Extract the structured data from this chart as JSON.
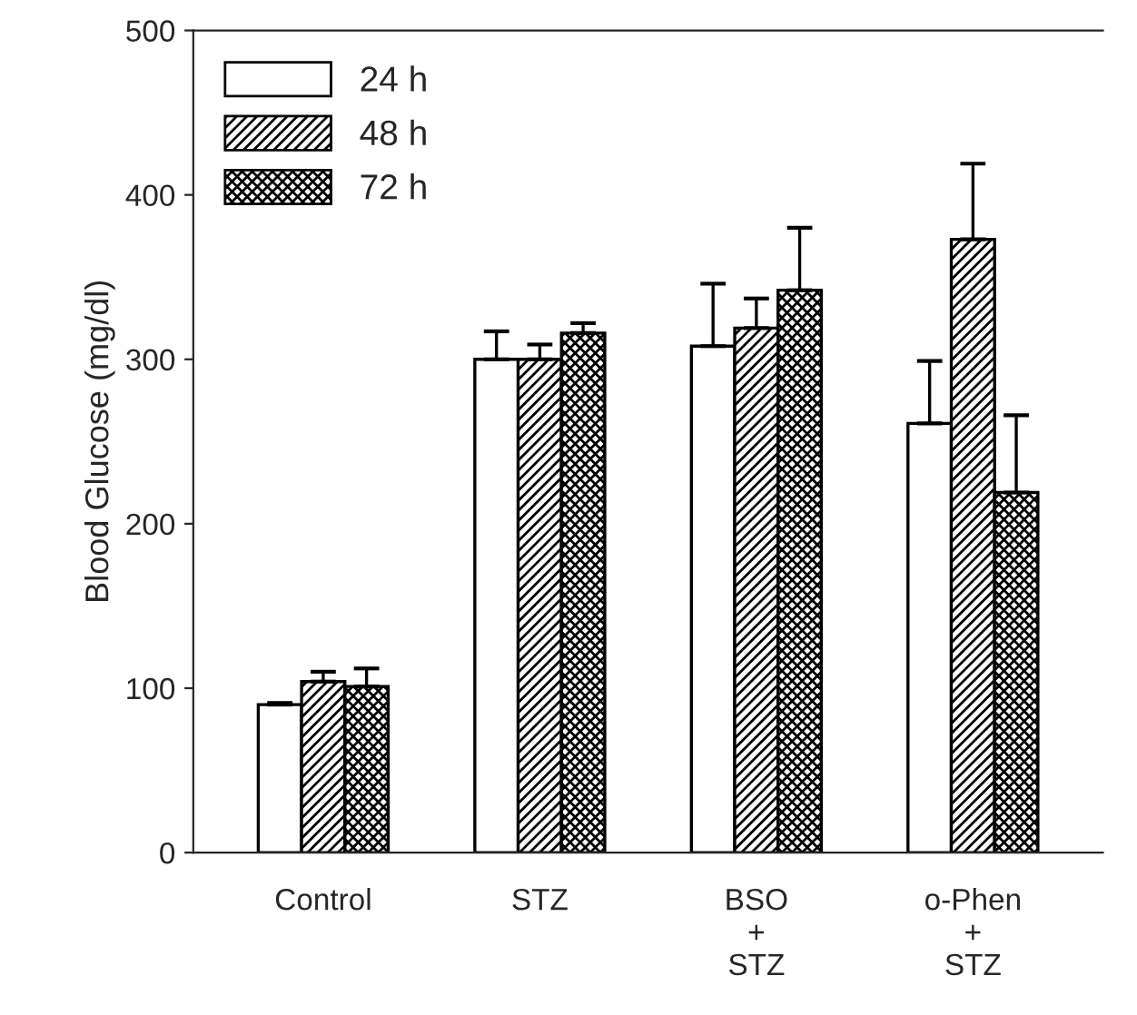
{
  "chart_data": {
    "type": "bar",
    "ylabel": "Blood Glucose (mg/dl)",
    "categories": [
      "Control",
      "STZ",
      "BSO\n+\nSTZ",
      "o-Phen\n+\nSTZ"
    ],
    "series": [
      {
        "name": "24 h",
        "color": "#ffffff",
        "values": [
          90,
          300,
          308,
          261
        ],
        "errors": [
          [
            90,
            91
          ],
          [
            300,
            317
          ],
          [
            308,
            346
          ],
          [
            261,
            299
          ]
        ]
      },
      {
        "name": "48 h",
        "color": "#000000",
        "values": [
          104,
          300,
          319,
          373
        ],
        "errors": [
          [
            104,
            110
          ],
          [
            300,
            309
          ],
          [
            319,
            337
          ],
          [
            373,
            419
          ]
        ]
      },
      {
        "name": "72 h",
        "color": "#000000",
        "values": [
          101,
          316,
          342,
          219
        ],
        "errors": [
          [
            101,
            112
          ],
          [
            316,
            322
          ],
          [
            342,
            380
          ],
          [
            219,
            266
          ]
        ]
      }
    ],
    "ylim": [
      0,
      500
    ],
    "yticks": [
      0,
      100,
      200,
      300,
      400,
      500
    ],
    "grid": false,
    "legend": "top left"
  }
}
